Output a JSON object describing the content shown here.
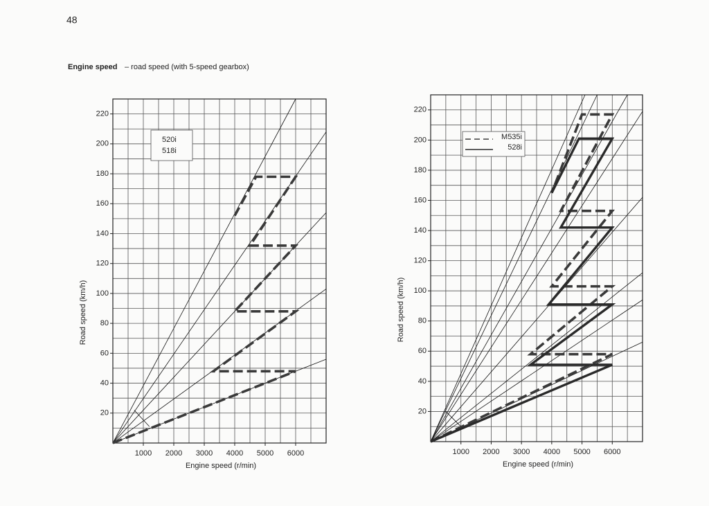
{
  "page": {
    "number": "48",
    "title": "Engine speed",
    "subtitle": "– road speed (with 5-speed gearbox)"
  },
  "chart_data": [
    {
      "type": "line",
      "xlabel": "Engine speed (r/min)",
      "ylabel": "Road speed (km/h)",
      "xlim": [
        0,
        7000
      ],
      "ylim": [
        0,
        230
      ],
      "xticks": [
        1000,
        2000,
        3000,
        4000,
        5000,
        6000
      ],
      "yticks": [
        20,
        40,
        60,
        80,
        100,
        120,
        140,
        160,
        180,
        200,
        220
      ],
      "xgrid": [
        0,
        500,
        1000,
        1500,
        2000,
        2500,
        3000,
        3500,
        4000,
        4500,
        5000,
        5500,
        6000,
        6500,
        7000
      ],
      "ygrid": [
        0,
        10,
        20,
        30,
        40,
        50,
        60,
        70,
        80,
        90,
        100,
        110,
        120,
        130,
        140,
        150,
        160,
        170,
        180,
        190,
        200,
        210,
        220,
        230
      ],
      "legend_labels": [
        "520i",
        "518i"
      ],
      "series": [
        {
          "style": "thin",
          "color": "#111111",
          "x": [
            0,
            6000
          ],
          "values": [
            0,
            230
          ]
        },
        {
          "style": "thin",
          "color": "#111111",
          "x": [
            0,
            7000
          ],
          "values": [
            0,
            208
          ]
        },
        {
          "style": "thin",
          "color": "#111111",
          "x": [
            0,
            7000
          ],
          "values": [
            0,
            154
          ]
        },
        {
          "style": "thin",
          "color": "#111111",
          "x": [
            0,
            7000
          ],
          "values": [
            0,
            103
          ]
        },
        {
          "style": "thin",
          "color": "#111111",
          "x": [
            0,
            7000
          ],
          "values": [
            0,
            56
          ]
        },
        {
          "style": "thin",
          "color": "#111111",
          "x": [
            700,
            1200
          ],
          "values": [
            22,
            11
          ]
        },
        {
          "style": "dashed",
          "color": "#3a3a3a",
          "x": [
            0,
            6000,
            3300,
            6000,
            4000,
            6000,
            4500,
            6000,
            4700,
            4000
          ],
          "values": [
            0,
            48,
            48,
            88,
            88,
            132,
            132,
            178,
            178,
            152
          ]
        }
      ]
    },
    {
      "type": "line",
      "xlabel": "Engine speed (r/min)",
      "ylabel": "Road speed (km/h)",
      "xlim": [
        0,
        7000
      ],
      "ylim": [
        0,
        230
      ],
      "xticks": [
        1000,
        2000,
        3000,
        4000,
        5000,
        6000
      ],
      "yticks": [
        20,
        40,
        60,
        80,
        100,
        120,
        140,
        160,
        180,
        200,
        220
      ],
      "xgrid": [
        0,
        500,
        1000,
        1500,
        2000,
        2500,
        3000,
        3500,
        4000,
        4500,
        5000,
        5500,
        6000,
        6500,
        7000
      ],
      "ygrid": [
        0,
        10,
        20,
        30,
        40,
        50,
        60,
        70,
        80,
        90,
        100,
        110,
        120,
        130,
        140,
        150,
        160,
        170,
        180,
        190,
        200,
        210,
        220,
        230
      ],
      "series": [
        {
          "style": "thin",
          "color": "#111111",
          "x": [
            0,
            5100
          ],
          "values": [
            0,
            230
          ]
        },
        {
          "style": "thin",
          "color": "#111111",
          "x": [
            0,
            5500
          ],
          "values": [
            0,
            230
          ]
        },
        {
          "style": "thin",
          "color": "#111111",
          "x": [
            0,
            6500
          ],
          "values": [
            0,
            230
          ]
        },
        {
          "style": "thin",
          "color": "#111111",
          "x": [
            0,
            7000
          ],
          "values": [
            0,
            219
          ]
        },
        {
          "style": "thin",
          "color": "#111111",
          "x": [
            0,
            7000
          ],
          "values": [
            0,
            162
          ]
        },
        {
          "style": "thin",
          "color": "#111111",
          "x": [
            0,
            7000
          ],
          "values": [
            0,
            112
          ]
        },
        {
          "style": "thin",
          "color": "#111111",
          "x": [
            0,
            7000
          ],
          "values": [
            0,
            94
          ]
        },
        {
          "style": "thin",
          "color": "#111111",
          "x": [
            0,
            7000
          ],
          "values": [
            0,
            66
          ]
        },
        {
          "style": "thin",
          "color": "#111111",
          "x": [
            500,
            1000
          ],
          "values": [
            20,
            10
          ]
        },
        {
          "name": "M535i",
          "style": "dashed",
          "color": "#3a3a3a",
          "x": [
            0,
            6000,
            3300,
            6000,
            4000,
            6000,
            4300,
            6000,
            5000,
            4000
          ],
          "values": [
            0,
            58,
            58,
            103,
            103,
            153,
            153,
            217,
            217,
            165
          ]
        },
        {
          "name": "528i",
          "style": "solid",
          "color": "#2a2a2a",
          "x": [
            0,
            6000,
            3300,
            6000,
            3900,
            6000,
            4300,
            6000,
            4900,
            4000
          ],
          "values": [
            0,
            51,
            51,
            91,
            91,
            142,
            142,
            201,
            201,
            165
          ]
        }
      ]
    }
  ]
}
